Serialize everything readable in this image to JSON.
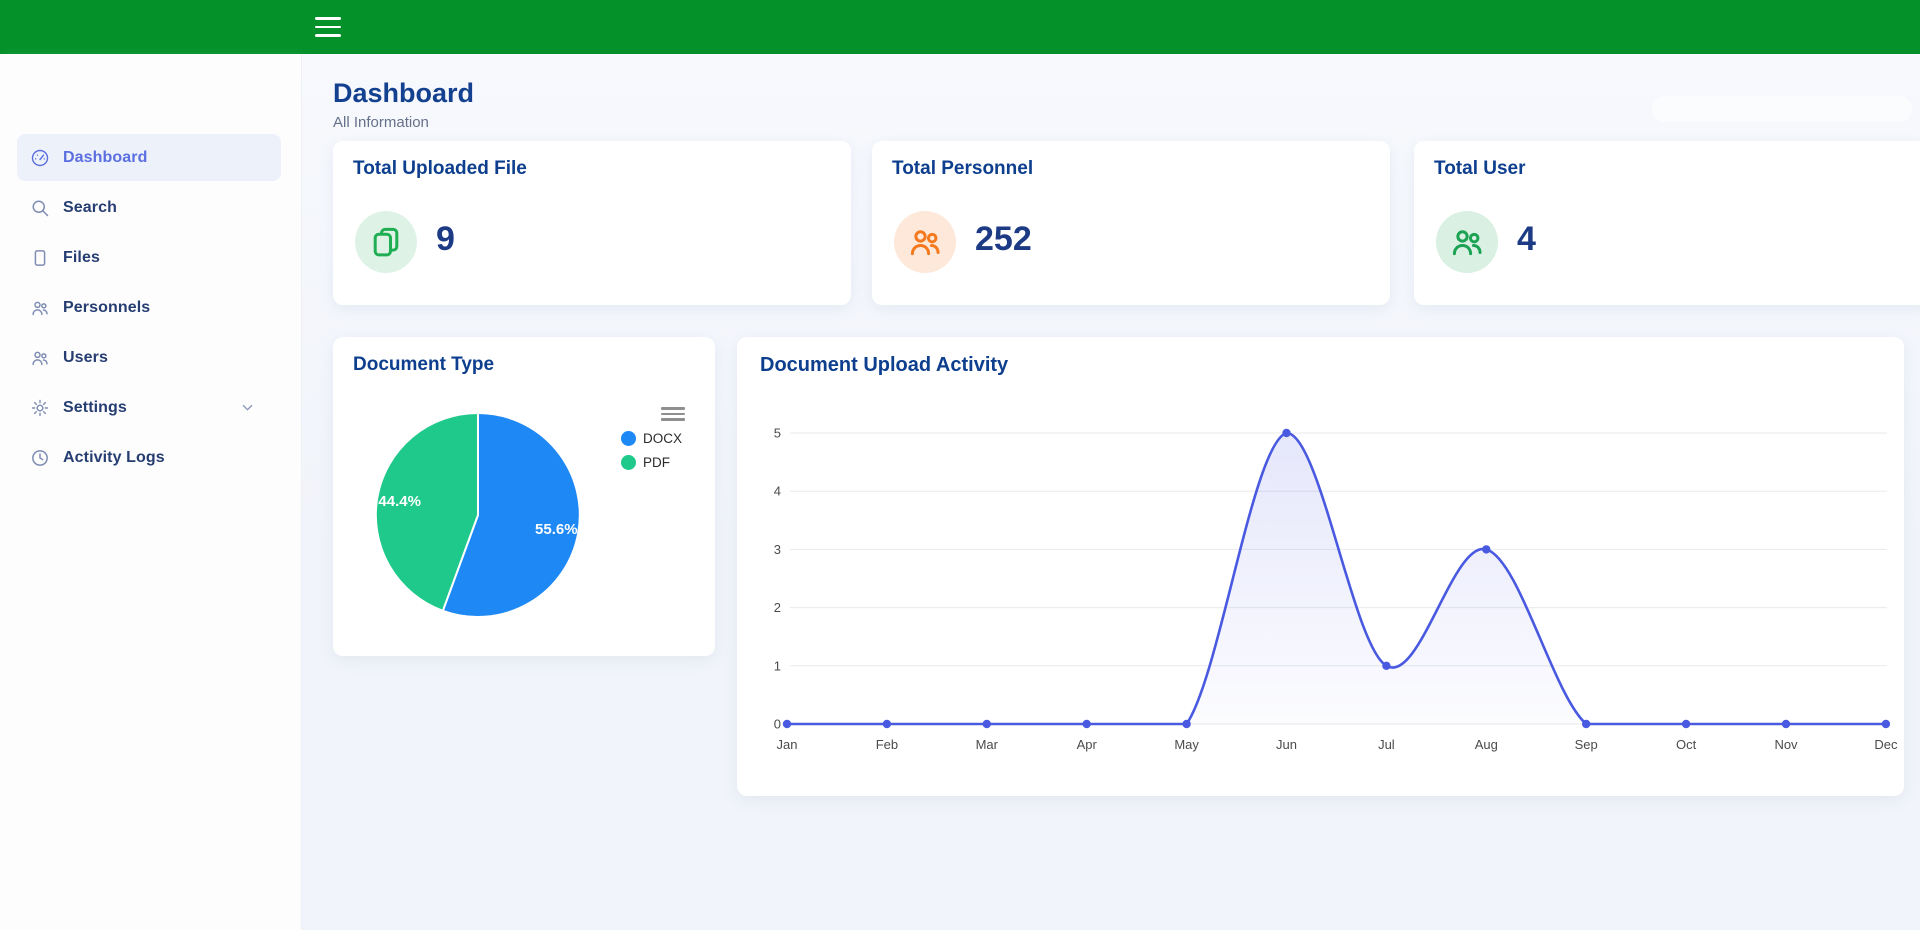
{
  "topbar": {
    "color": "#059129",
    "menu_icon": "hamburger-icon"
  },
  "sidebar": {
    "items": [
      {
        "label": "Dashboard",
        "icon": "gauge-icon",
        "active": true,
        "chevron": false
      },
      {
        "label": "Search",
        "icon": "search-icon",
        "active": false,
        "chevron": false
      },
      {
        "label": "Files",
        "icon": "file-icon",
        "active": false,
        "chevron": false
      },
      {
        "label": "Personnels",
        "icon": "people-icon",
        "active": false,
        "chevron": false
      },
      {
        "label": "Users",
        "icon": "people-icon",
        "active": false,
        "chevron": false
      },
      {
        "label": "Settings",
        "icon": "gear-icon",
        "active": false,
        "chevron": true
      },
      {
        "label": "Activity Logs",
        "icon": "clock-icon",
        "active": false,
        "chevron": false
      }
    ]
  },
  "header": {
    "title": "Dashboard",
    "subtitle": "All Information"
  },
  "stats": [
    {
      "title": "Total Uploaded File",
      "value": "9",
      "icon": "copy-files-icon",
      "icon_color": "#1fae54",
      "circle_color": "#def3e6"
    },
    {
      "title": "Total Personnel",
      "value": "252",
      "icon": "people-icon",
      "icon_color": "#f4791f",
      "circle_color": "#fde8da"
    },
    {
      "title": "Total User",
      "value": "4",
      "icon": "people-icon",
      "icon_color": "#1ba353",
      "circle_color": "#d9f0e2"
    }
  ],
  "chart_data": [
    {
      "type": "pie",
      "title": "Document Type",
      "labels": [
        "DOCX",
        "PDF"
      ],
      "values": [
        55.6,
        44.4
      ],
      "value_labels": [
        "55.6%",
        "44.4%"
      ],
      "colors": [
        "#1e88f5",
        "#1fc98b"
      ],
      "legend_position": "right",
      "start_angle_deg": 0
    },
    {
      "type": "line",
      "title": "Document Upload Activity",
      "x": [
        "Jan",
        "Feb",
        "Mar",
        "Apr",
        "May",
        "Jun",
        "Jul",
        "Aug",
        "Sep",
        "Oct",
        "Nov",
        "Dec"
      ],
      "series": [
        {
          "name": "uploads",
          "values": [
            0,
            0,
            0,
            0,
            0,
            5,
            1,
            3,
            0,
            0,
            0,
            0
          ]
        }
      ],
      "ylim": [
        0,
        5
      ],
      "yticks": [
        0,
        1,
        2,
        3,
        4,
        5
      ],
      "grid": true,
      "line_color": "#4a5ae0",
      "fill_color": "#5d68e5",
      "axis_label_color": "#4b4b4b",
      "grid_color": "#e9eaee",
      "legend_position": "none"
    }
  ]
}
